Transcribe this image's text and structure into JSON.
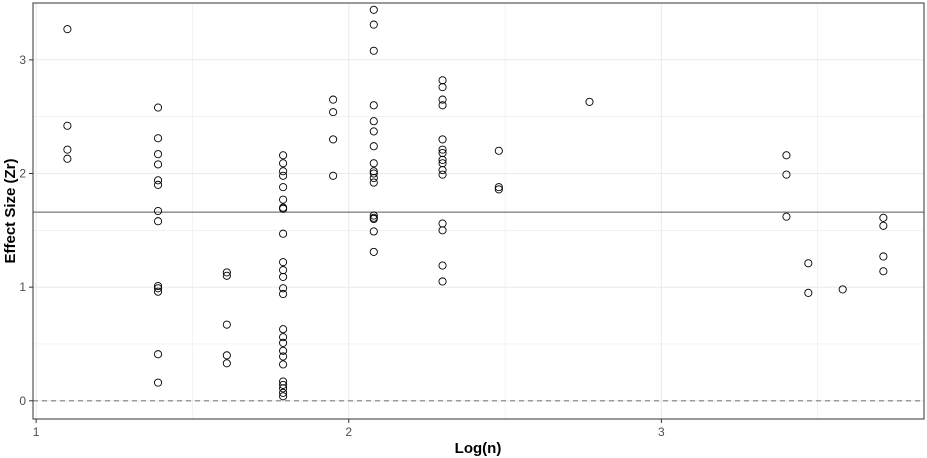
{
  "chart_data": {
    "type": "scatter",
    "xlabel": "Log(n)",
    "ylabel": "Effect Size (Zr)",
    "xlim": [
      0.99,
      3.84
    ],
    "ylim": [
      -0.16,
      3.5
    ],
    "x_ticks": [
      1,
      2,
      3
    ],
    "x_tick_labels": [
      "1",
      "2",
      "3"
    ],
    "y_ticks": [
      0,
      1,
      2,
      3
    ],
    "y_tick_labels": [
      "0",
      "1",
      "2",
      "3"
    ],
    "grid": true,
    "marker": "open-circle",
    "reference_lines": [
      {
        "y": 1.66,
        "style": "solid"
      },
      {
        "y": 0,
        "style": "dashed"
      }
    ],
    "colors": {
      "points": "#000000",
      "grid": "#ebebeb",
      "reference_solid": "#595959",
      "reference_dashed": "#7f7f7f",
      "frame": "#333333"
    },
    "points": [
      {
        "x": 1.1,
        "y": 3.27
      },
      {
        "x": 1.1,
        "y": 2.42
      },
      {
        "x": 1.1,
        "y": 2.21
      },
      {
        "x": 1.1,
        "y": 2.13
      },
      {
        "x": 1.39,
        "y": 2.58
      },
      {
        "x": 1.39,
        "y": 2.31
      },
      {
        "x": 1.39,
        "y": 2.17
      },
      {
        "x": 1.39,
        "y": 2.08
      },
      {
        "x": 1.39,
        "y": 1.94
      },
      {
        "x": 1.39,
        "y": 1.9
      },
      {
        "x": 1.39,
        "y": 1.67
      },
      {
        "x": 1.39,
        "y": 1.58
      },
      {
        "x": 1.39,
        "y": 1.01
      },
      {
        "x": 1.39,
        "y": 0.99
      },
      {
        "x": 1.39,
        "y": 0.96
      },
      {
        "x": 1.39,
        "y": 0.41
      },
      {
        "x": 1.39,
        "y": 0.16
      },
      {
        "x": 1.61,
        "y": 1.13
      },
      {
        "x": 1.61,
        "y": 1.1
      },
      {
        "x": 1.61,
        "y": 0.67
      },
      {
        "x": 1.61,
        "y": 0.4
      },
      {
        "x": 1.61,
        "y": 0.33
      },
      {
        "x": 1.79,
        "y": 2.16
      },
      {
        "x": 1.79,
        "y": 2.09
      },
      {
        "x": 1.79,
        "y": 2.02
      },
      {
        "x": 1.79,
        "y": 1.98
      },
      {
        "x": 1.79,
        "y": 1.88
      },
      {
        "x": 1.79,
        "y": 1.77
      },
      {
        "x": 1.79,
        "y": 1.7
      },
      {
        "x": 1.79,
        "y": 1.69
      },
      {
        "x": 1.79,
        "y": 1.47
      },
      {
        "x": 1.79,
        "y": 1.22
      },
      {
        "x": 1.79,
        "y": 1.15
      },
      {
        "x": 1.79,
        "y": 1.09
      },
      {
        "x": 1.79,
        "y": 0.99
      },
      {
        "x": 1.79,
        "y": 0.94
      },
      {
        "x": 1.79,
        "y": 0.63
      },
      {
        "x": 1.79,
        "y": 0.56
      },
      {
        "x": 1.79,
        "y": 0.51
      },
      {
        "x": 1.79,
        "y": 0.44
      },
      {
        "x": 1.79,
        "y": 0.39
      },
      {
        "x": 1.79,
        "y": 0.32
      },
      {
        "x": 1.79,
        "y": 0.17
      },
      {
        "x": 1.79,
        "y": 0.14
      },
      {
        "x": 1.79,
        "y": 0.11
      },
      {
        "x": 1.79,
        "y": 0.07
      },
      {
        "x": 1.79,
        "y": 0.04
      },
      {
        "x": 1.95,
        "y": 2.65
      },
      {
        "x": 1.95,
        "y": 2.54
      },
      {
        "x": 1.95,
        "y": 2.3
      },
      {
        "x": 1.95,
        "y": 1.98
      },
      {
        "x": 2.08,
        "y": 3.44
      },
      {
        "x": 2.08,
        "y": 3.31
      },
      {
        "x": 2.08,
        "y": 3.08
      },
      {
        "x": 2.08,
        "y": 2.6
      },
      {
        "x": 2.08,
        "y": 2.46
      },
      {
        "x": 2.08,
        "y": 2.37
      },
      {
        "x": 2.08,
        "y": 2.24
      },
      {
        "x": 2.08,
        "y": 2.09
      },
      {
        "x": 2.08,
        "y": 2.02
      },
      {
        "x": 2.08,
        "y": 2.0
      },
      {
        "x": 2.08,
        "y": 1.96
      },
      {
        "x": 2.08,
        "y": 1.92
      },
      {
        "x": 2.08,
        "y": 1.63
      },
      {
        "x": 2.08,
        "y": 1.61
      },
      {
        "x": 2.08,
        "y": 1.6
      },
      {
        "x": 2.08,
        "y": 1.49
      },
      {
        "x": 2.08,
        "y": 1.31
      },
      {
        "x": 2.3,
        "y": 2.82
      },
      {
        "x": 2.3,
        "y": 2.76
      },
      {
        "x": 2.3,
        "y": 2.65
      },
      {
        "x": 2.3,
        "y": 2.6
      },
      {
        "x": 2.3,
        "y": 2.3
      },
      {
        "x": 2.3,
        "y": 2.21
      },
      {
        "x": 2.3,
        "y": 2.18
      },
      {
        "x": 2.3,
        "y": 2.12
      },
      {
        "x": 2.3,
        "y": 2.09
      },
      {
        "x": 2.3,
        "y": 2.03
      },
      {
        "x": 2.3,
        "y": 1.99
      },
      {
        "x": 2.3,
        "y": 1.56
      },
      {
        "x": 2.3,
        "y": 1.5
      },
      {
        "x": 2.3,
        "y": 1.19
      },
      {
        "x": 2.3,
        "y": 1.05
      },
      {
        "x": 2.48,
        "y": 2.2
      },
      {
        "x": 2.48,
        "y": 1.88
      },
      {
        "x": 2.48,
        "y": 1.86
      },
      {
        "x": 2.77,
        "y": 2.63
      },
      {
        "x": 3.4,
        "y": 2.16
      },
      {
        "x": 3.4,
        "y": 1.99
      },
      {
        "x": 3.4,
        "y": 1.62
      },
      {
        "x": 3.47,
        "y": 1.21
      },
      {
        "x": 3.47,
        "y": 0.95
      },
      {
        "x": 3.58,
        "y": 0.98
      },
      {
        "x": 3.71,
        "y": 1.61
      },
      {
        "x": 3.71,
        "y": 1.54
      },
      {
        "x": 3.71,
        "y": 1.27
      },
      {
        "x": 3.71,
        "y": 1.14
      }
    ]
  }
}
